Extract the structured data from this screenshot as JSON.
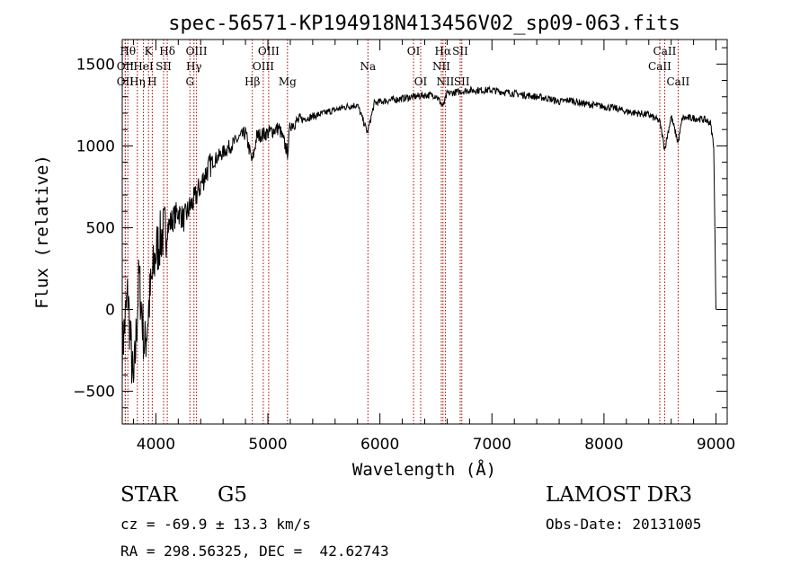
{
  "chart_data": {
    "type": "line",
    "title": "spec-56571-KP194918N413456V02_sp09-063.fits",
    "xlabel": "Wavelength (Å)",
    "ylabel": "Flux (relative)",
    "xlim": [
      3700,
      9100
    ],
    "ylim": [
      -700,
      1650
    ],
    "xticks": [
      4000,
      5000,
      6000,
      7000,
      8000,
      9000
    ],
    "yticks": [
      -500,
      0,
      500,
      1000,
      1500
    ],
    "grid": false,
    "series": [
      {
        "name": "flux",
        "x": [
          3700,
          3750,
          3800,
          3850,
          3900,
          3950,
          4000,
          4050,
          4100,
          4150,
          4200,
          4250,
          4300,
          4350,
          4400,
          4450,
          4500,
          4600,
          4700,
          4800,
          4860,
          4900,
          5000,
          5100,
          5175,
          5200,
          5300,
          5400,
          5500,
          5600,
          5700,
          5800,
          5890,
          5950,
          6000,
          6100,
          6200,
          6300,
          6400,
          6500,
          6563,
          6600,
          6700,
          6800,
          6900,
          7000,
          7100,
          7200,
          7300,
          7400,
          7500,
          7600,
          7700,
          7800,
          7900,
          8000,
          8100,
          8200,
          8300,
          8400,
          8498,
          8542,
          8600,
          8662,
          8700,
          8800,
          8900,
          8950,
          8980,
          9000
        ],
        "y": [
          -250,
          100,
          -500,
          200,
          -250,
          100,
          350,
          450,
          500,
          550,
          600,
          550,
          620,
          680,
          760,
          840,
          900,
          960,
          1020,
          1080,
          900,
          1060,
          1080,
          1110,
          960,
          1130,
          1160,
          1180,
          1200,
          1220,
          1240,
          1250,
          1080,
          1260,
          1270,
          1280,
          1290,
          1300,
          1310,
          1310,
          1240,
          1320,
          1330,
          1340,
          1340,
          1340,
          1330,
          1320,
          1310,
          1300,
          1290,
          1270,
          1280,
          1260,
          1250,
          1240,
          1230,
          1210,
          1200,
          1190,
          1150,
          980,
          1180,
          1020,
          1170,
          1170,
          1160,
          1140,
          1000,
          0
        ]
      }
    ],
    "lines": [
      {
        "label": "Hθ",
        "x": 3750,
        "row": 1
      },
      {
        "label": "OII",
        "x": 3727,
        "row": 2
      },
      {
        "label": "Hη",
        "x": 3835,
        "row": 3
      },
      {
        "label": "OII",
        "x": 3727,
        "row": 3
      },
      {
        "label": "K",
        "x": 3934,
        "row": 1
      },
      {
        "label": "H",
        "x": 3968,
        "row": 3
      },
      {
        "label": "HeI",
        "x": 3889,
        "row": 2
      },
      {
        "label": "Hδ",
        "x": 4102,
        "row": 1
      },
      {
        "label": "SII",
        "x": 4069,
        "row": 2
      },
      {
        "label": "OIII",
        "x": 4363,
        "row": 1
      },
      {
        "label": "Hγ",
        "x": 4340,
        "row": 2
      },
      {
        "label": "G",
        "x": 4304,
        "row": 3
      },
      {
        "label": "Hβ",
        "x": 4861,
        "row": 3
      },
      {
        "label": "OIII",
        "x": 5007,
        "row": 1
      },
      {
        "label": "OIII",
        "x": 4959,
        "row": 2
      },
      {
        "label": "Mg",
        "x": 5175,
        "row": 3
      },
      {
        "label": "Na",
        "x": 5893,
        "row": 2
      },
      {
        "label": "OI",
        "x": 6300,
        "row": 1
      },
      {
        "label": "OI",
        "x": 6364,
        "row": 3
      },
      {
        "label": "Hα",
        "x": 6563,
        "row": 1
      },
      {
        "label": "NII",
        "x": 6548,
        "row": 2
      },
      {
        "label": "NII",
        "x": 6584,
        "row": 3
      },
      {
        "label": "SII",
        "x": 6717,
        "row": 1
      },
      {
        "label": "SII",
        "x": 6731,
        "row": 3
      },
      {
        "label": "CaII",
        "x": 8542,
        "row": 1
      },
      {
        "label": "CaII",
        "x": 8498,
        "row": 2
      },
      {
        "label": "CaII",
        "x": 8662,
        "row": 3
      }
    ]
  },
  "info": {
    "object_class": "STAR",
    "subclass": "G5",
    "survey": "LAMOST DR3",
    "cz": "cz = -69.9 ± 13.3 km/s",
    "obs_date": "Obs-Date: 20131005",
    "coords": "RA = 298.56325, DEC =  42.62743"
  }
}
